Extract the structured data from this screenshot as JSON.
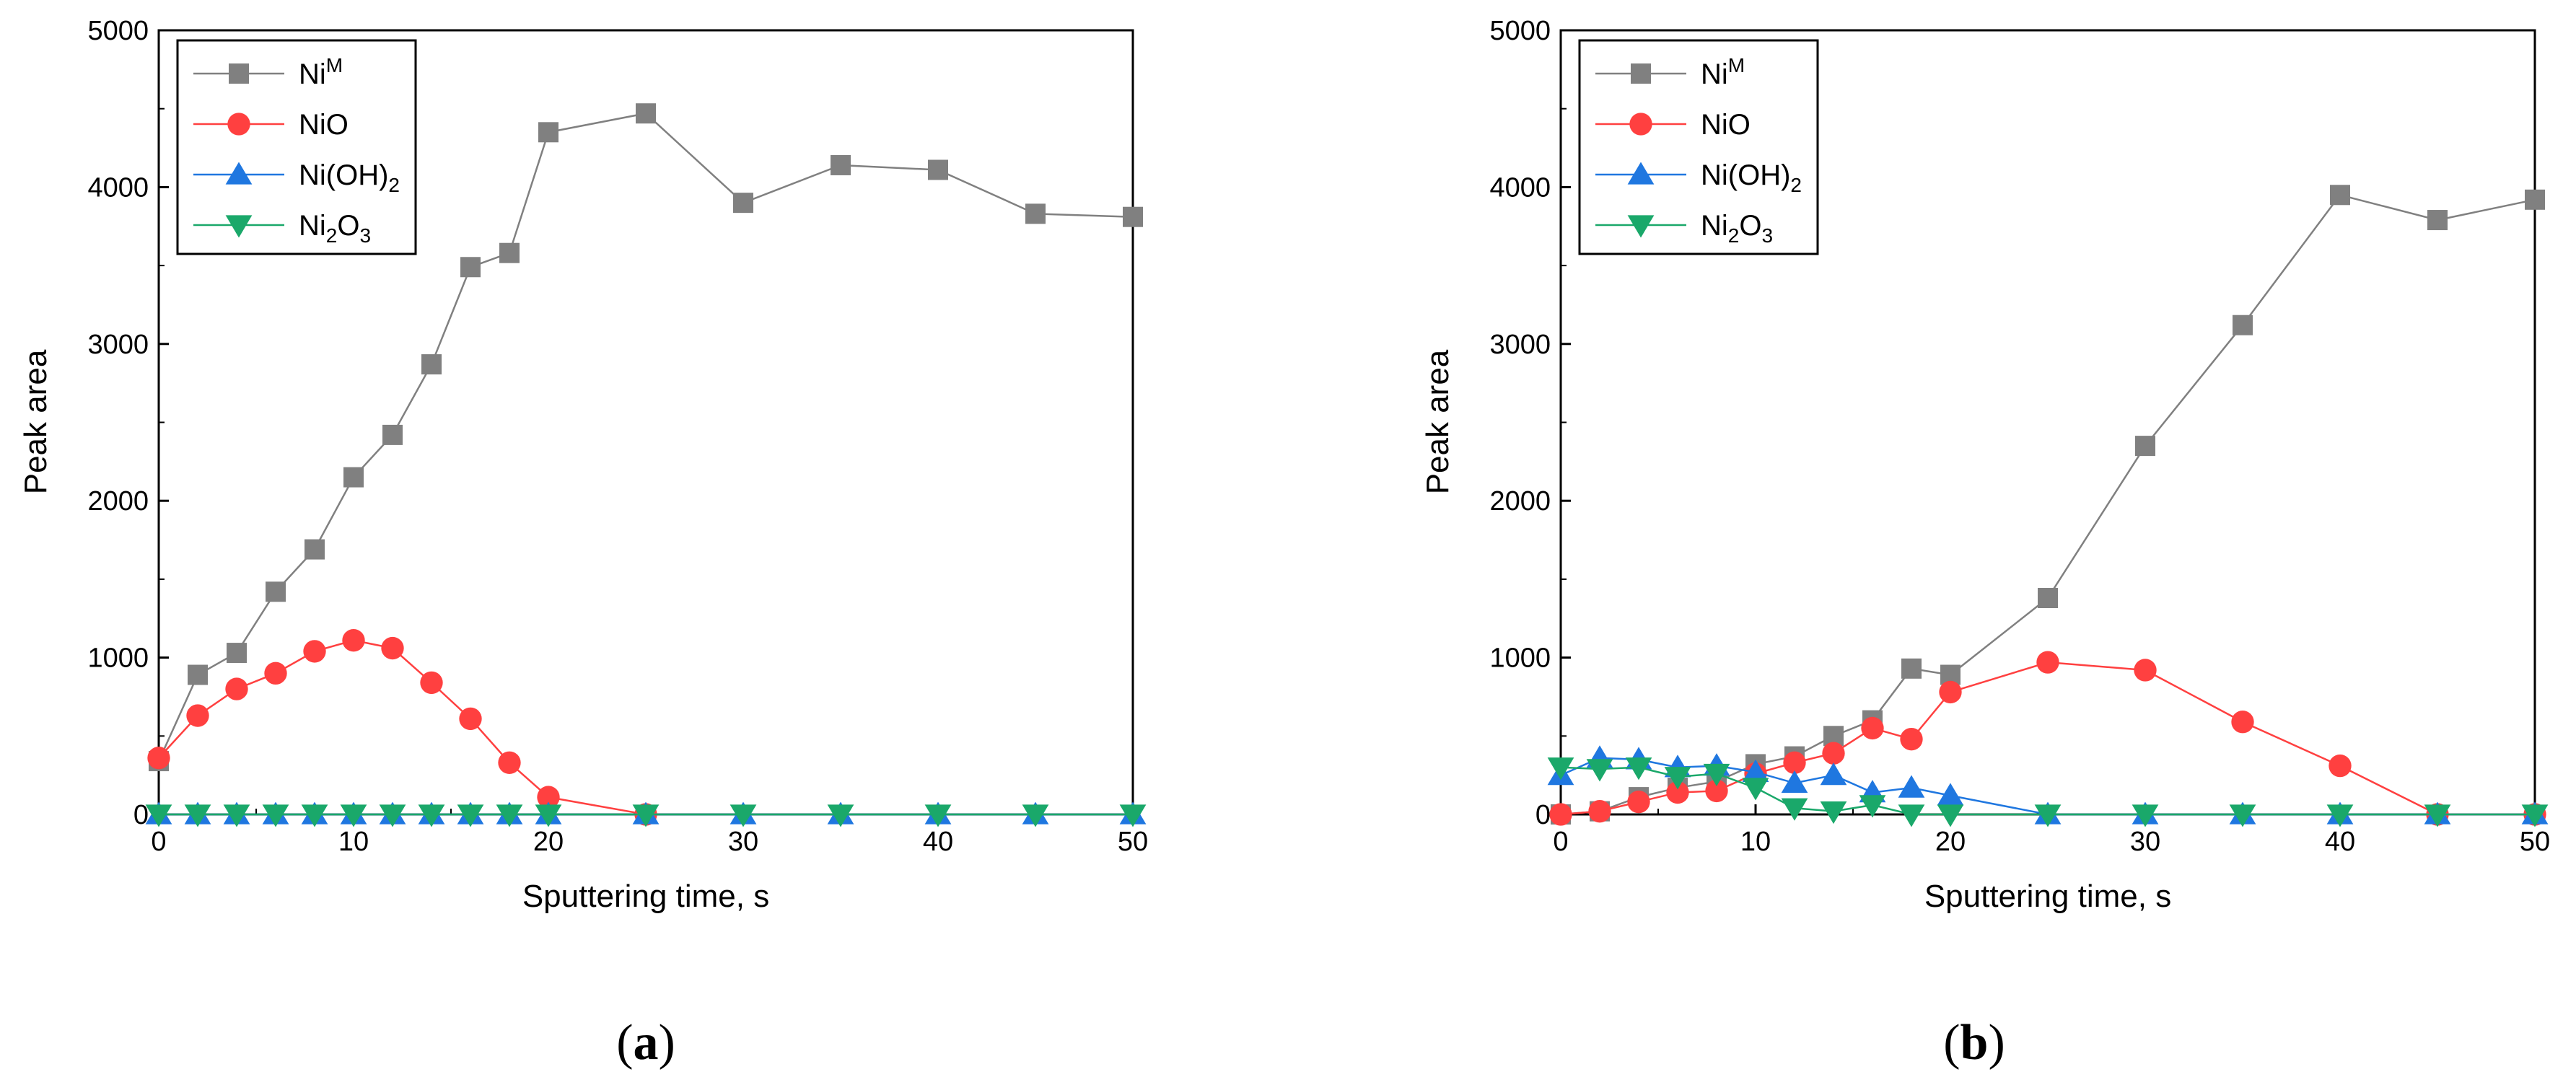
{
  "figure_panels": [
    {
      "panel_label": "a"
    },
    {
      "panel_label": "b"
    }
  ],
  "chart_data": [
    {
      "type": "line",
      "panel": "a",
      "title": "",
      "xlabel": "Sputtering time, s",
      "ylabel": "Peak area",
      "xlim": [
        0,
        50
      ],
      "ylim": [
        0,
        5000
      ],
      "xticks": [
        0,
        10,
        20,
        30,
        40,
        50
      ],
      "yticks": [
        0,
        1000,
        2000,
        3000,
        4000,
        5000
      ],
      "legend_position": "top-left",
      "series": [
        {
          "name": "Ni^M",
          "label_main": "Ni",
          "label_sup": "M",
          "marker": "square",
          "color": "#808080",
          "x": [
            0,
            2,
            4,
            6,
            8,
            10,
            12,
            14,
            16,
            18,
            20,
            25,
            30,
            35,
            40,
            45,
            50
          ],
          "y": [
            340,
            890,
            1030,
            1420,
            1690,
            2150,
            2420,
            2870,
            3490,
            3580,
            4350,
            4470,
            3900,
            4140,
            4110,
            3830,
            3810
          ]
        },
        {
          "name": "NiO",
          "label_main": "NiO",
          "marker": "circle",
          "color": "#ff4040",
          "x": [
            0,
            2,
            4,
            6,
            8,
            10,
            12,
            14,
            16,
            18,
            20,
            25
          ],
          "y": [
            360,
            630,
            800,
            900,
            1040,
            1110,
            1060,
            840,
            610,
            330,
            110,
            0
          ]
        },
        {
          "name": "Ni(OH)2",
          "label_main": "Ni(OH)",
          "label_sub": "2",
          "marker": "triangle-up",
          "color": "#1f77e0",
          "x": [
            0,
            2,
            4,
            6,
            8,
            10,
            12,
            14,
            16,
            18,
            20,
            25,
            30,
            35,
            40,
            45,
            50
          ],
          "y": [
            0,
            0,
            0,
            0,
            0,
            0,
            0,
            0,
            0,
            0,
            0,
            0,
            0,
            0,
            0,
            0,
            0
          ]
        },
        {
          "name": "Ni2O3",
          "label_main": "Ni",
          "label_sub": "2",
          "label_tail": "O",
          "label_sub2": "3",
          "marker": "triangle-down",
          "color": "#1aa86a",
          "x": [
            0,
            2,
            4,
            6,
            8,
            10,
            12,
            14,
            16,
            18,
            20,
            25,
            30,
            35,
            40,
            45,
            50
          ],
          "y": [
            0,
            0,
            0,
            0,
            0,
            0,
            0,
            0,
            0,
            0,
            0,
            0,
            0,
            0,
            0,
            0,
            0
          ]
        }
      ]
    },
    {
      "type": "line",
      "panel": "b",
      "title": "",
      "xlabel": "Sputtering time, s",
      "ylabel": "Peak area",
      "xlim": [
        0,
        50
      ],
      "ylim": [
        0,
        5000
      ],
      "xticks": [
        0,
        10,
        20,
        30,
        40,
        50
      ],
      "yticks": [
        0,
        1000,
        2000,
        3000,
        4000,
        5000
      ],
      "legend_position": "top-left",
      "series": [
        {
          "name": "Ni^M",
          "label_main": "Ni",
          "label_sup": "M",
          "marker": "square",
          "color": "#808080",
          "x": [
            0,
            2,
            4,
            6,
            8,
            10,
            12,
            14,
            16,
            18,
            20,
            25,
            30,
            35,
            40,
            45,
            50
          ],
          "y": [
            0,
            20,
            110,
            170,
            210,
            320,
            370,
            500,
            600,
            930,
            890,
            1380,
            2350,
            3120,
            3950,
            3790,
            3920
          ]
        },
        {
          "name": "NiO",
          "label_main": "NiO",
          "marker": "circle",
          "color": "#ff4040",
          "x": [
            0,
            2,
            4,
            6,
            8,
            10,
            12,
            14,
            16,
            18,
            20,
            25,
            30,
            35,
            40,
            45,
            50
          ],
          "y": [
            0,
            20,
            80,
            140,
            150,
            260,
            330,
            390,
            550,
            480,
            780,
            970,
            920,
            590,
            310,
            0,
            0
          ]
        },
        {
          "name": "Ni(OH)2",
          "label_main": "Ni(OH)",
          "label_sub": "2",
          "marker": "triangle-up",
          "color": "#1f77e0",
          "x": [
            0,
            2,
            4,
            6,
            8,
            10,
            12,
            14,
            16,
            18,
            20,
            25,
            30,
            35,
            40,
            45,
            50
          ],
          "y": [
            250,
            360,
            350,
            300,
            310,
            270,
            200,
            250,
            140,
            170,
            120,
            0,
            0,
            0,
            0,
            0,
            0
          ]
        },
        {
          "name": "Ni2O3",
          "label_main": "Ni",
          "label_sub": "2",
          "label_tail": "O",
          "label_sub2": "3",
          "marker": "triangle-down",
          "color": "#1aa86a",
          "x": [
            0,
            2,
            4,
            6,
            8,
            10,
            12,
            14,
            16,
            18,
            20,
            25,
            30,
            35,
            40,
            45,
            50
          ],
          "y": [
            300,
            290,
            300,
            240,
            260,
            170,
            40,
            20,
            60,
            0,
            0,
            0,
            0,
            0,
            0,
            0,
            0
          ]
        }
      ]
    }
  ]
}
